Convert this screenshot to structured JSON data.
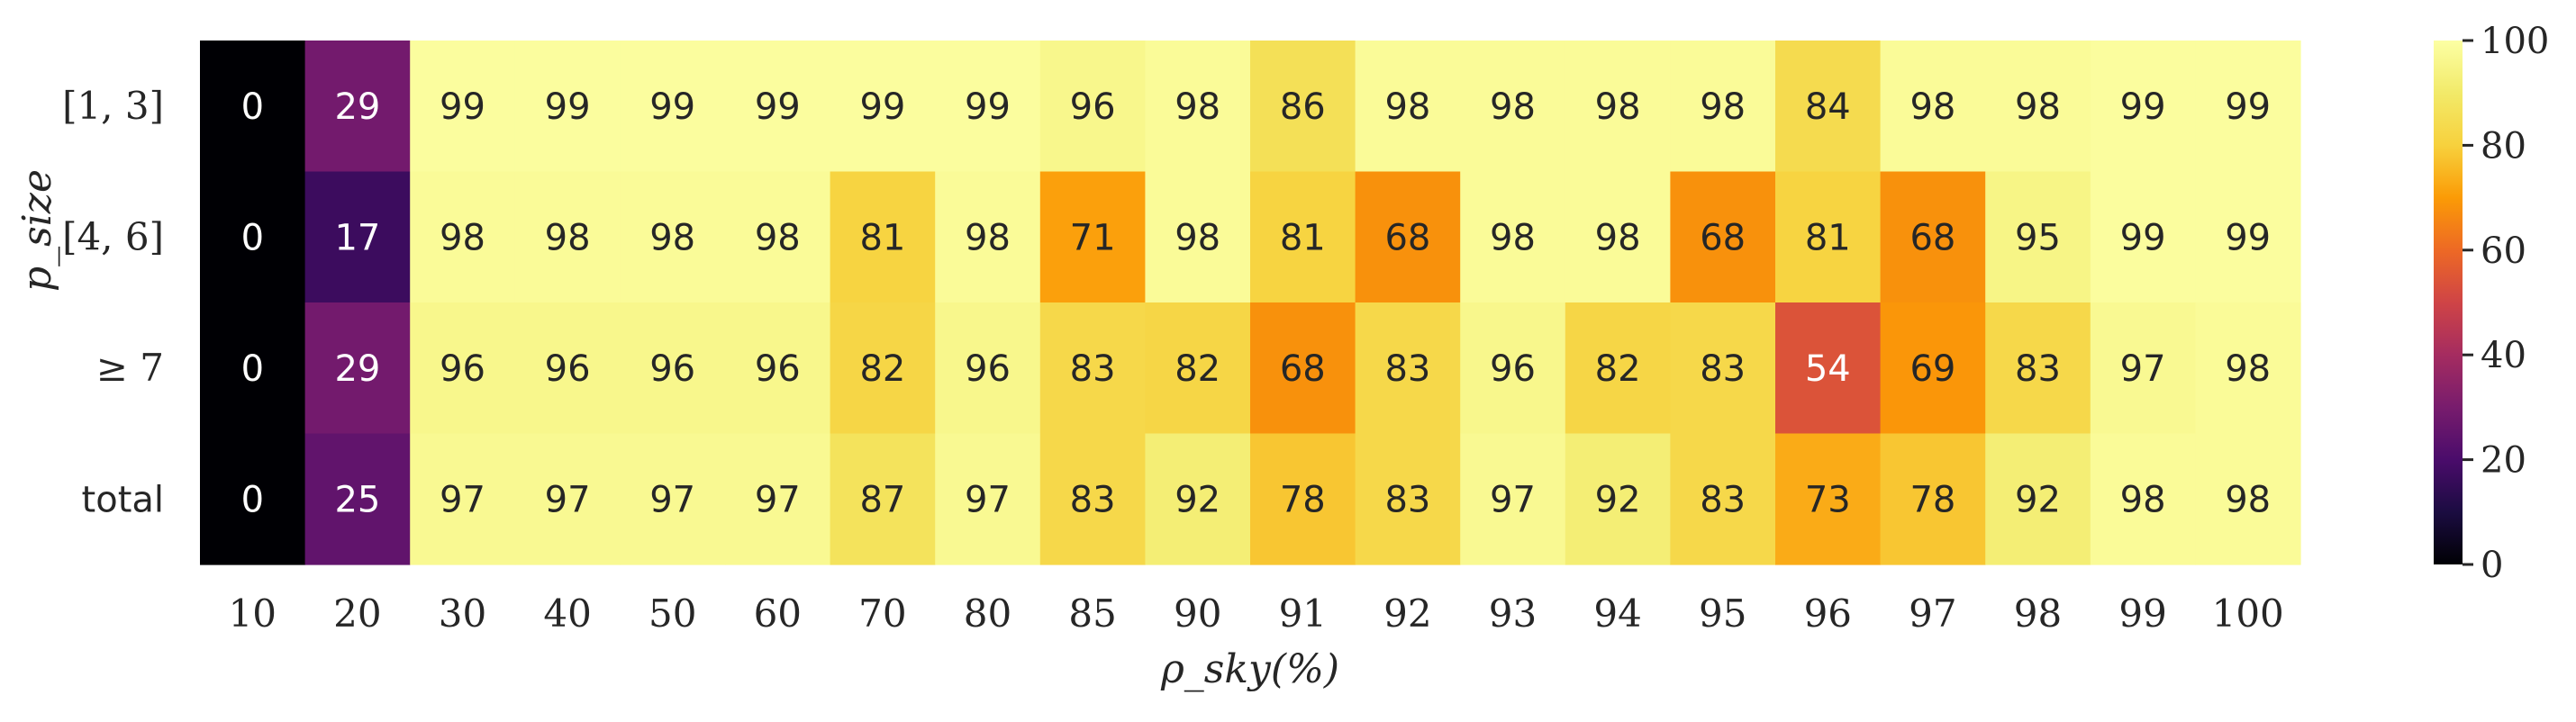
{
  "chart_data": {
    "type": "heatmap",
    "xlabel": "ρ_sky(%)",
    "ylabel": "p_size",
    "x_categories": [
      "10",
      "20",
      "30",
      "40",
      "50",
      "60",
      "70",
      "80",
      "85",
      "90",
      "91",
      "92",
      "93",
      "94",
      "95",
      "96",
      "97",
      "98",
      "99",
      "100"
    ],
    "y_categories": [
      "[1, 3]",
      "[4, 6]",
      "≥ 7",
      "total"
    ],
    "values": [
      [
        0,
        29,
        99,
        99,
        99,
        99,
        99,
        99,
        96,
        98,
        86,
        98,
        98,
        98,
        98,
        84,
        98,
        98,
        99,
        99
      ],
      [
        0,
        17,
        98,
        98,
        98,
        98,
        81,
        98,
        71,
        98,
        81,
        68,
        98,
        98,
        68,
        81,
        68,
        95,
        99,
        99
      ],
      [
        0,
        29,
        96,
        96,
        96,
        96,
        82,
        96,
        83,
        82,
        68,
        83,
        96,
        82,
        83,
        54,
        69,
        83,
        97,
        98
      ],
      [
        0,
        25,
        97,
        97,
        97,
        97,
        87,
        97,
        83,
        92,
        78,
        83,
        97,
        92,
        83,
        73,
        78,
        92,
        98,
        98
      ]
    ],
    "colorscale": "inferno",
    "vmin": 0,
    "vmax": 100,
    "colorbar_ticks": [
      0,
      20,
      40,
      60,
      80,
      100
    ],
    "annotations": "cell values",
    "grid": false
  }
}
